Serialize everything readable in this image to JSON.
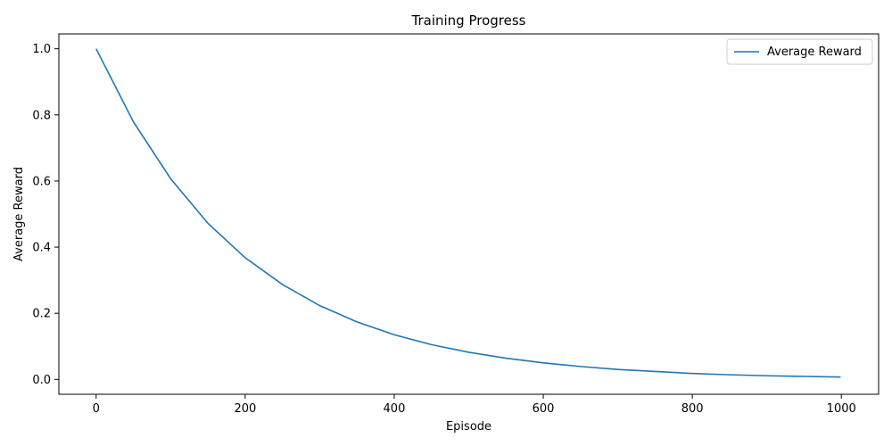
{
  "chart_data": {
    "type": "line",
    "title": "Training Progress",
    "xlabel": "Episode",
    "ylabel": "Average Reward",
    "xlim": [
      -50,
      1050
    ],
    "ylim": [
      -0.045,
      1.045
    ],
    "xticks": [
      0,
      200,
      400,
      600,
      800,
      1000
    ],
    "yticks": [
      0.0,
      0.2,
      0.4,
      0.6,
      0.8,
      1.0
    ],
    "xtick_labels": [
      "0",
      "200",
      "400",
      "600",
      "800",
      "1000"
    ],
    "ytick_labels": [
      "0.0",
      "0.2",
      "0.4",
      "0.6",
      "0.8",
      "1.0"
    ],
    "grid": false,
    "legend_position": "top-right",
    "series": [
      {
        "name": "Average Reward",
        "color": "#1f77b4",
        "x": [
          0,
          50,
          100,
          150,
          200,
          250,
          300,
          350,
          400,
          450,
          500,
          550,
          600,
          650,
          700,
          750,
          800,
          850,
          900,
          950,
          999
        ],
        "y": [
          1.0,
          0.779,
          0.607,
          0.472,
          0.368,
          0.287,
          0.223,
          0.174,
          0.135,
          0.105,
          0.082,
          0.064,
          0.05,
          0.039,
          0.03,
          0.024,
          0.018,
          0.014,
          0.011,
          0.009,
          0.007
        ]
      }
    ]
  }
}
